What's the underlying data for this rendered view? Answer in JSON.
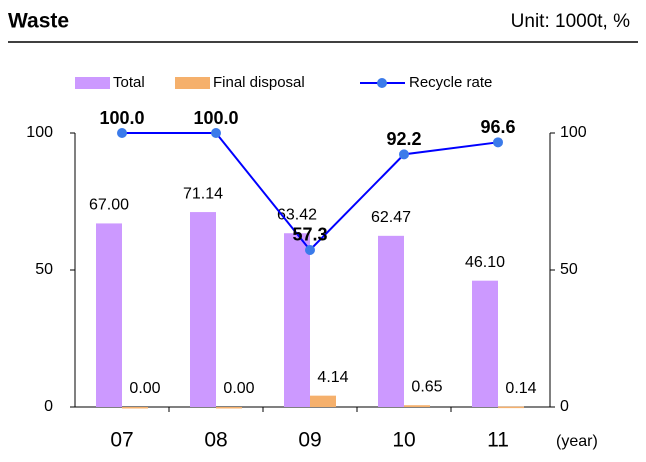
{
  "chart_data": {
    "type": "bar",
    "title": "Waste",
    "subtitle": "Unit: 1000t, %",
    "xlabel": "(year)",
    "categories": [
      "07",
      "08",
      "09",
      "10",
      "11"
    ],
    "series": [
      {
        "name": "Total",
        "color": "#cc99ff",
        "values": [
          67.0,
          71.14,
          63.42,
          62.47,
          46.1
        ],
        "value_labels": [
          "67.00",
          "71.14",
          "63.42",
          "62.47",
          "46.10"
        ]
      },
      {
        "name": "Final disposal",
        "color": "#f5b06c",
        "values": [
          0.0,
          0.0,
          4.14,
          0.65,
          0.14
        ],
        "value_labels": [
          "0.00",
          "0.00",
          "4.14",
          "0.65",
          "0.14"
        ]
      },
      {
        "name": "Recycle rate",
        "type": "line",
        "axis": "y2",
        "color": "#0000ff",
        "marker_color": "#3b7bea",
        "values": [
          100.0,
          100.0,
          57.3,
          92.2,
          96.6
        ],
        "value_labels": [
          "100.0",
          "100.0",
          "57.3",
          "92.2",
          "96.6"
        ]
      }
    ],
    "ylim": [
      0,
      100
    ],
    "yticks": [
      0,
      50,
      100
    ],
    "y2lim": [
      0,
      100
    ],
    "y2ticks": [
      0,
      50,
      100
    ],
    "grid": false
  }
}
